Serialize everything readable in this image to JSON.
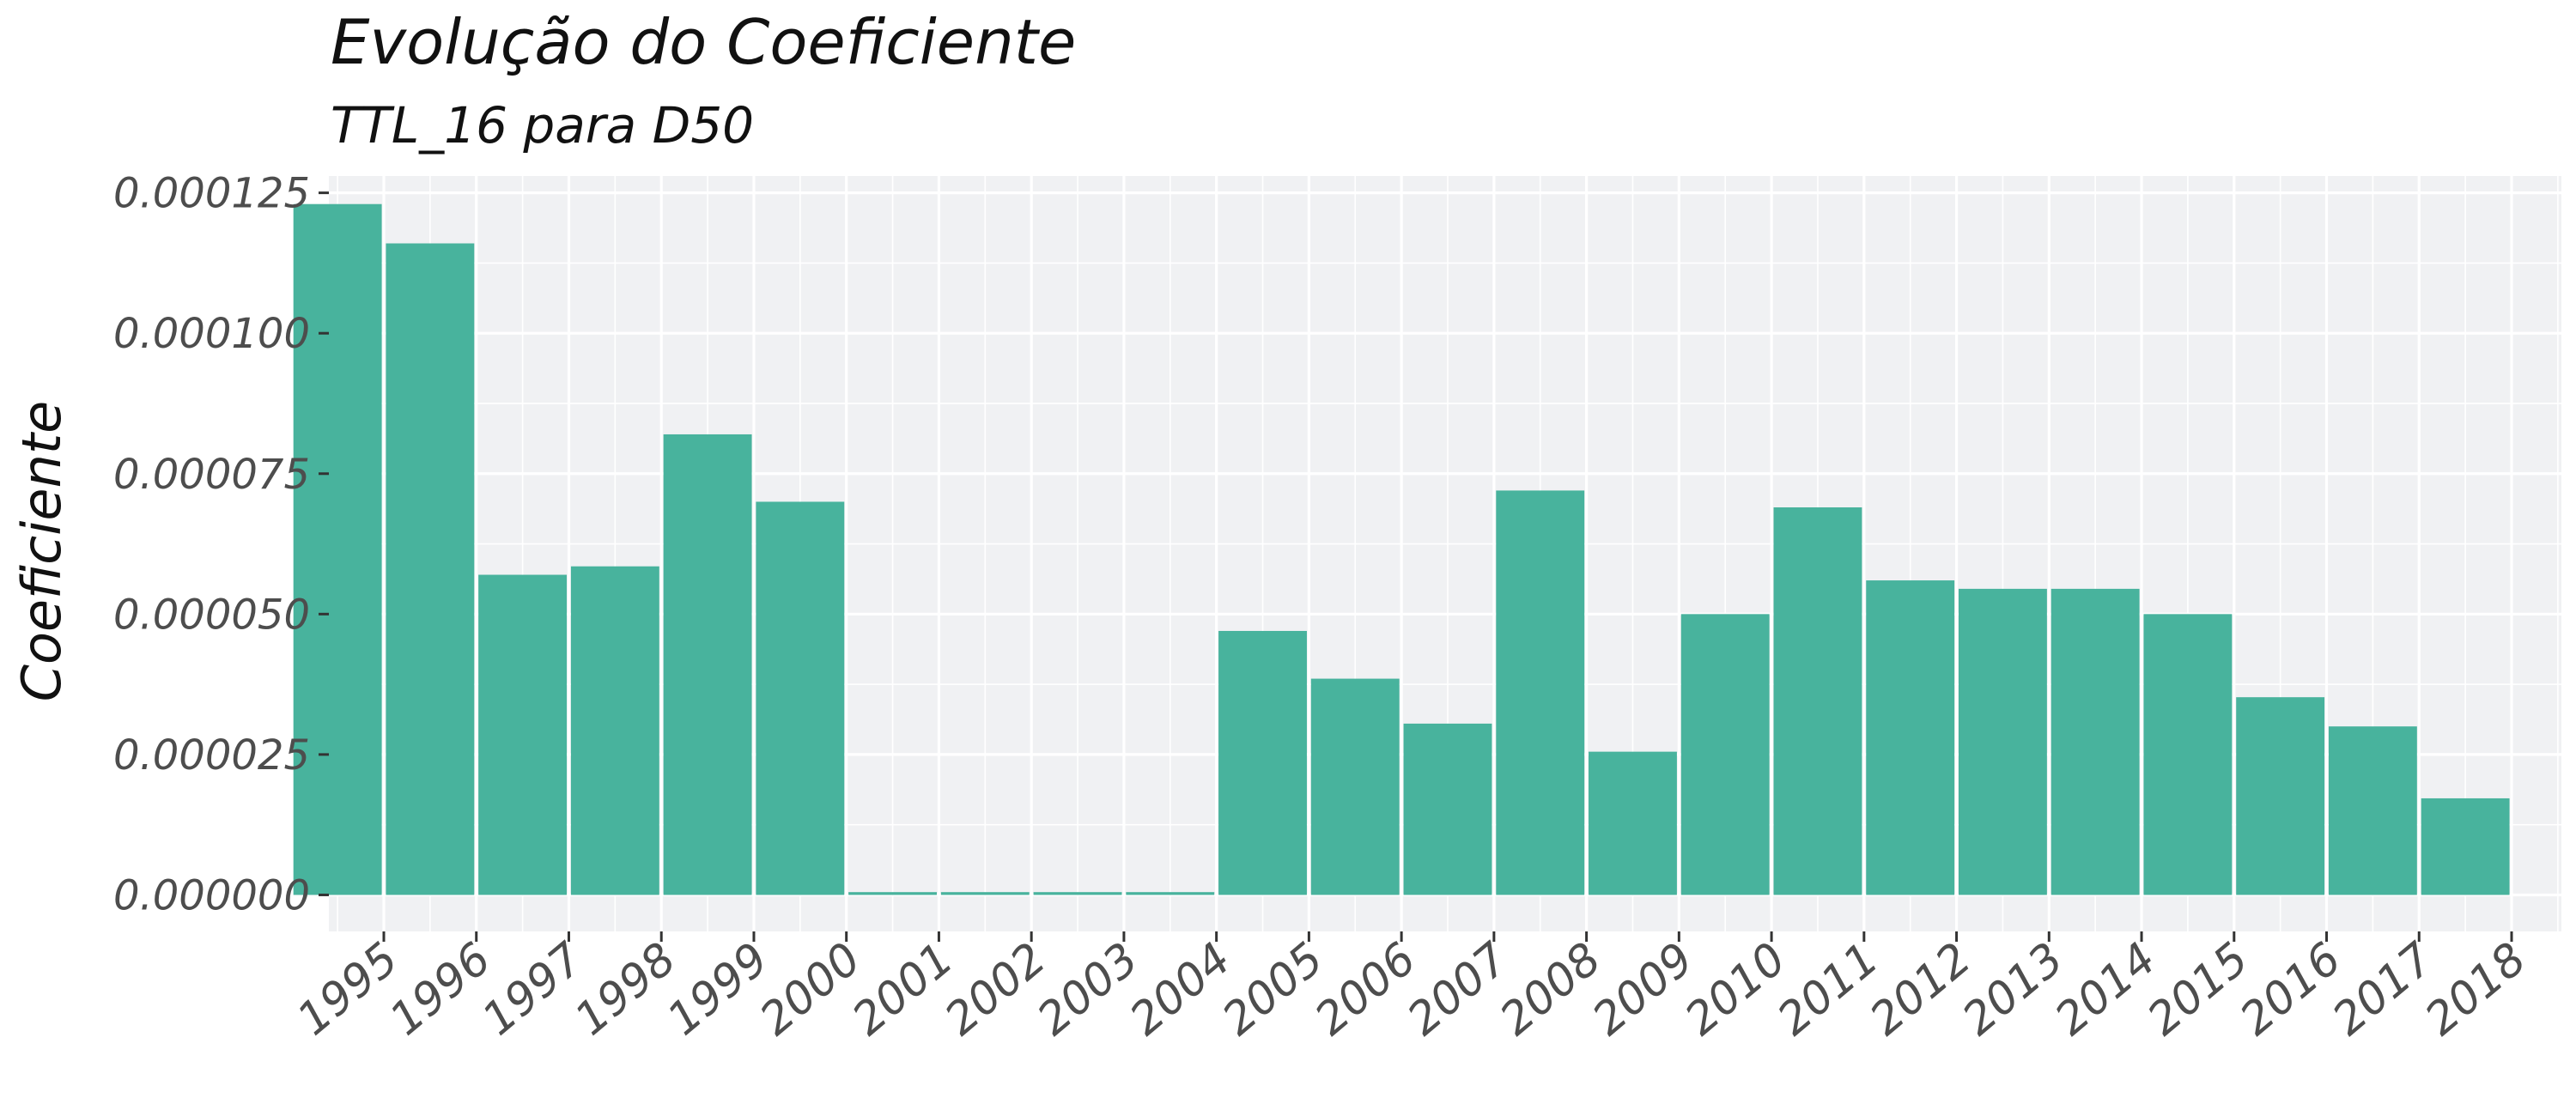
{
  "chart_data": {
    "type": "bar",
    "title": "Evolução do Coeficiente",
    "subtitle": "TTL_16 para D50",
    "xlabel": "",
    "ylabel": "Coeficiente",
    "categories": [
      "1995",
      "1996",
      "1997",
      "1998",
      "1999",
      "2000",
      "2001",
      "2002",
      "2003",
      "2004",
      "2005",
      "2006",
      "2007",
      "2008",
      "2009",
      "2010",
      "2011",
      "2012",
      "2013",
      "2014",
      "2015",
      "2016",
      "2017",
      "2018"
    ],
    "values": [
      0.000123,
      0.000116,
      5.7e-05,
      5.85e-05,
      8.2e-05,
      7e-05,
      5e-07,
      5e-07,
      5e-07,
      5e-07,
      4.7e-05,
      3.85e-05,
      3.05e-05,
      7.2e-05,
      2.55e-05,
      5e-05,
      6.9e-05,
      5.6e-05,
      5.45e-05,
      5.45e-05,
      5e-05,
      3.52e-05,
      3e-05,
      1.72e-05
    ],
    "y_ticks": [
      "0.000000",
      "0.000025",
      "0.000050",
      "0.000075",
      "0.000100",
      "0.000125"
    ],
    "ylim": [
      -6.5e-06,
      0.000128
    ],
    "grid": true,
    "bar_color": "#48b39d",
    "panel_color": "#f0f1f3"
  }
}
